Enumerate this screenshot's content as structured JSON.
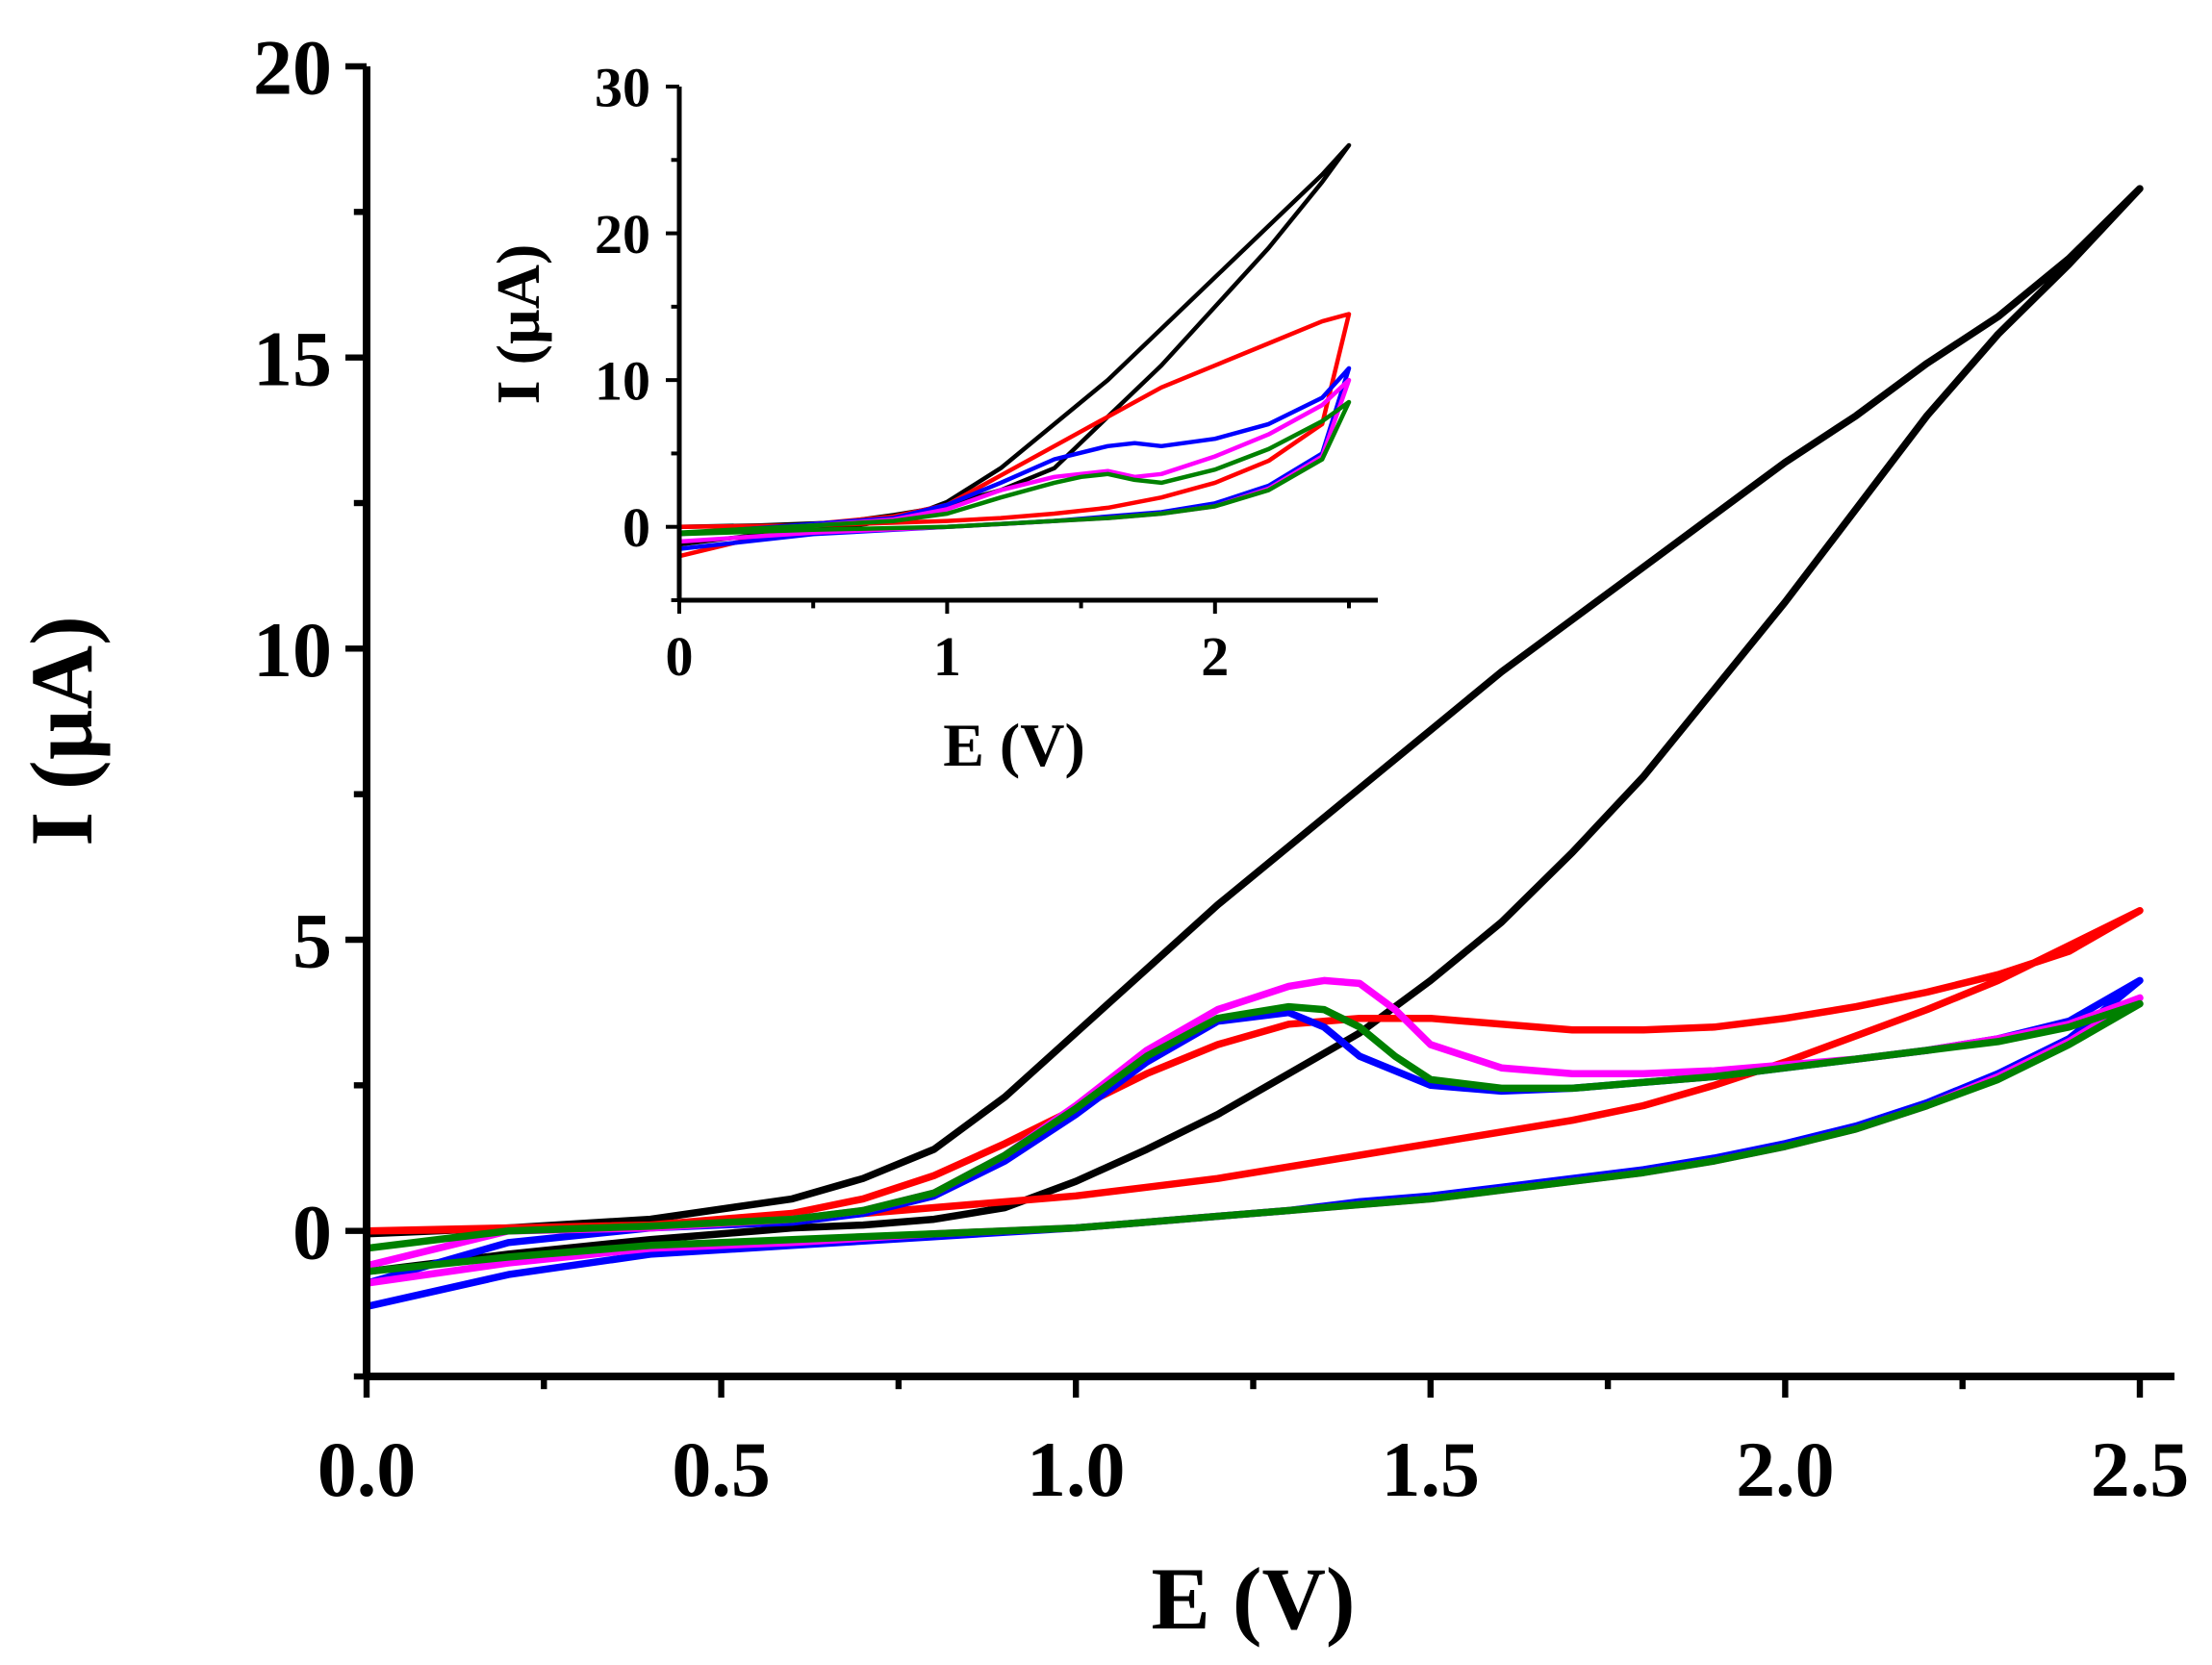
{
  "chart_data": [
    {
      "type": "line",
      "xlabel": "E (V)",
      "ylabel": "I (µA)",
      "xlim": [
        0,
        2.5
      ],
      "ylim": [
        -2.5,
        20
      ],
      "xticks": [
        "0.0",
        "0.5",
        "1.0",
        "1.5",
        "2.0",
        "2.5"
      ],
      "yticks": [
        "0",
        "5",
        "10",
        "15",
        "20"
      ],
      "grid": false,
      "series": [
        {
          "color": "#000000",
          "x": [
            0.0,
            0.2,
            0.4,
            0.5,
            0.55,
            0.6,
            0.7,
            0.8,
            0.9,
            1.0,
            1.1,
            1.2,
            1.3,
            1.4,
            1.5,
            1.6,
            1.7,
            1.8,
            1.9,
            2.0,
            2.1,
            2.2,
            2.3,
            2.4,
            2.5,
            2.4,
            2.3,
            2.2,
            2.1,
            2.0,
            1.9,
            1.8,
            1.7,
            1.6,
            1.5,
            1.4,
            1.3,
            1.2,
            1.1,
            1.0,
            0.9,
            0.8,
            0.7,
            0.6,
            0.4,
            0.2,
            0.0
          ],
          "y": [
            -0.7,
            -0.4,
            -0.15,
            -0.05,
            0.0,
            0.05,
            0.1,
            0.2,
            0.4,
            0.85,
            1.4,
            2.0,
            2.7,
            3.4,
            4.3,
            5.3,
            6.5,
            7.8,
            9.3,
            10.8,
            12.4,
            14.0,
            15.4,
            16.6,
            17.9,
            16.7,
            15.7,
            14.9,
            14.0,
            13.2,
            12.3,
            11.4,
            10.5,
            9.6,
            8.6,
            7.6,
            6.6,
            5.6,
            4.5,
            3.4,
            2.3,
            1.4,
            0.9,
            0.55,
            0.2,
            0.05,
            -0.05
          ]
        },
        {
          "color": "#ff0000",
          "x": [
            0.0,
            0.2,
            0.4,
            0.6,
            0.8,
            1.0,
            1.1,
            1.2,
            1.3,
            1.4,
            1.45,
            1.5,
            1.6,
            1.7,
            1.8,
            1.9,
            2.0,
            2.1,
            2.2,
            2.3,
            2.4,
            2.5,
            2.4,
            2.3,
            2.2,
            2.1,
            2.0,
            1.9,
            1.8,
            1.7,
            1.6,
            1.5,
            1.4,
            1.3,
            1.2,
            1.1,
            1.0,
            0.9,
            0.8,
            0.7,
            0.6,
            0.4,
            0.2,
            0.0
          ],
          "y": [
            0.0,
            0.05,
            0.1,
            0.2,
            0.4,
            0.6,
            0.75,
            0.9,
            1.1,
            1.3,
            1.4,
            1.5,
            1.7,
            1.9,
            2.15,
            2.5,
            2.9,
            3.35,
            3.8,
            4.3,
            4.9,
            5.5,
            4.8,
            4.4,
            4.1,
            3.85,
            3.65,
            3.5,
            3.45,
            3.45,
            3.55,
            3.65,
            3.65,
            3.55,
            3.2,
            2.7,
            2.1,
            1.5,
            0.95,
            0.55,
            0.3,
            0.1,
            0.03,
            0.0
          ]
        },
        {
          "color": "#0000ff",
          "x": [
            0.0,
            0.2,
            0.4,
            0.6,
            0.8,
            1.0,
            1.1,
            1.2,
            1.3,
            1.4,
            1.5,
            1.6,
            1.7,
            1.8,
            1.9,
            2.0,
            2.1,
            2.2,
            2.3,
            2.4,
            2.5,
            2.4,
            2.3,
            2.2,
            2.1,
            2.0,
            1.9,
            1.8,
            1.7,
            1.6,
            1.5,
            1.4,
            1.35,
            1.3,
            1.2,
            1.1,
            1.0,
            0.9,
            0.8,
            0.7,
            0.6,
            0.4,
            0.2,
            0.0
          ],
          "y": [
            -1.3,
            -0.75,
            -0.4,
            -0.25,
            -0.1,
            0.05,
            0.15,
            0.25,
            0.35,
            0.5,
            0.6,
            0.75,
            0.9,
            1.05,
            1.25,
            1.5,
            1.8,
            2.2,
            2.7,
            3.3,
            4.3,
            3.6,
            3.3,
            3.1,
            2.95,
            2.8,
            2.65,
            2.55,
            2.45,
            2.4,
            2.5,
            3.0,
            3.5,
            3.75,
            3.6,
            2.9,
            2.0,
            1.2,
            0.6,
            0.3,
            0.15,
            0.05,
            -0.2,
            -0.9
          ]
        },
        {
          "color": "#ff00ff",
          "x": [
            0.0,
            0.2,
            0.4,
            0.6,
            0.8,
            1.0,
            1.1,
            1.2,
            1.3,
            1.4,
            1.5,
            1.6,
            1.7,
            1.8,
            1.9,
            2.0,
            2.1,
            2.2,
            2.3,
            2.4,
            2.5,
            2.4,
            2.3,
            2.2,
            2.1,
            2.0,
            1.9,
            1.8,
            1.7,
            1.6,
            1.5,
            1.45,
            1.4,
            1.35,
            1.3,
            1.2,
            1.1,
            1.0,
            0.9,
            0.8,
            0.7,
            0.6,
            0.4,
            0.2,
            0.0
          ],
          "y": [
            -0.9,
            -0.55,
            -0.3,
            -0.2,
            -0.05,
            0.05,
            0.15,
            0.25,
            0.35,
            0.45,
            0.55,
            0.7,
            0.85,
            1.0,
            1.2,
            1.45,
            1.75,
            2.15,
            2.65,
            3.25,
            4.0,
            3.55,
            3.3,
            3.1,
            2.95,
            2.85,
            2.75,
            2.7,
            2.7,
            2.8,
            3.2,
            3.8,
            4.25,
            4.3,
            4.2,
            3.8,
            3.1,
            2.15,
            1.3,
            0.65,
            0.35,
            0.2,
            0.05,
            0.0,
            -0.6
          ]
        },
        {
          "color": "#008000",
          "x": [
            0.0,
            0.2,
            0.4,
            0.6,
            0.8,
            1.0,
            1.1,
            1.2,
            1.3,
            1.4,
            1.5,
            1.6,
            1.7,
            1.8,
            1.9,
            2.0,
            2.1,
            2.2,
            2.3,
            2.4,
            2.5,
            2.4,
            2.3,
            2.2,
            2.1,
            2.0,
            1.9,
            1.8,
            1.7,
            1.6,
            1.5,
            1.45,
            1.4,
            1.35,
            1.3,
            1.2,
            1.1,
            1.0,
            0.9,
            0.8,
            0.7,
            0.6,
            0.4,
            0.2,
            0.0
          ],
          "y": [
            -0.7,
            -0.45,
            -0.25,
            -0.15,
            -0.05,
            0.05,
            0.15,
            0.25,
            0.35,
            0.45,
            0.55,
            0.7,
            0.85,
            1.0,
            1.2,
            1.45,
            1.75,
            2.15,
            2.6,
            3.2,
            3.9,
            3.5,
            3.25,
            3.1,
            2.95,
            2.8,
            2.65,
            2.55,
            2.45,
            2.45,
            2.6,
            3.0,
            3.5,
            3.8,
            3.85,
            3.65,
            3.0,
            2.1,
            1.3,
            0.65,
            0.35,
            0.2,
            0.08,
            0.0,
            -0.3
          ]
        }
      ]
    },
    {
      "type": "line",
      "xlabel": "E (V)",
      "ylabel": "I (µA)",
      "xlim": [
        0,
        2.5
      ],
      "ylim": [
        -5,
        30
      ],
      "xticks": [
        "0",
        "1",
        "2"
      ],
      "yticks": [
        "0",
        "10",
        "20",
        "30"
      ],
      "grid": false,
      "series": [
        {
          "color": "#000000",
          "x": [
            0.0,
            0.4,
            0.7,
            0.8,
            0.9,
            1.0,
            1.2,
            1.4,
            1.6,
            1.8,
            2.0,
            2.2,
            2.4,
            2.5,
            2.4,
            2.2,
            2.0,
            1.8,
            1.6,
            1.4,
            1.2,
            1.0,
            0.9,
            0.8,
            0.6,
            0.3,
            0.0
          ],
          "y": [
            -1.2,
            -0.3,
            0.2,
            0.5,
            1.0,
            1.7,
            4.0,
            7.0,
            10.0,
            13.5,
            17.0,
            20.5,
            24.0,
            26.0,
            23.5,
            19.0,
            15.0,
            11.0,
            7.5,
            4.0,
            2.5,
            1.5,
            1.1,
            0.8,
            0.3,
            0.1,
            0.0
          ]
        },
        {
          "color": "#ff0000",
          "x": [
            0.0,
            0.5,
            1.0,
            1.2,
            1.4,
            1.6,
            1.8,
            2.0,
            2.2,
            2.4,
            2.5,
            2.4,
            2.2,
            2.0,
            1.8,
            1.6,
            1.4,
            1.2,
            1.0,
            0.8,
            0.5,
            0.0
          ],
          "y": [
            0.0,
            0.1,
            0.4,
            0.6,
            0.9,
            1.3,
            2.0,
            3.0,
            4.5,
            7.0,
            14.5,
            14.0,
            12.5,
            11.0,
            9.5,
            7.5,
            5.5,
            3.5,
            1.5,
            0.7,
            0.2,
            -2.0
          ]
        },
        {
          "color": "#0000ff",
          "x": [
            0.0,
            0.5,
            1.0,
            1.2,
            1.4,
            1.6,
            1.8,
            2.0,
            2.2,
            2.4,
            2.5,
            2.4,
            2.2,
            2.0,
            1.8,
            1.7,
            1.6,
            1.4,
            1.2,
            1.0,
            0.8,
            0.5,
            0.0
          ],
          "y": [
            -1.5,
            -0.5,
            0.0,
            0.2,
            0.4,
            0.7,
            1.0,
            1.6,
            2.8,
            5.0,
            10.8,
            8.8,
            7.0,
            6.0,
            5.5,
            5.7,
            5.5,
            4.6,
            3.0,
            1.5,
            0.6,
            0.2,
            -0.5
          ]
        },
        {
          "color": "#ff00ff",
          "x": [
            0.0,
            0.5,
            1.0,
            1.2,
            1.4,
            1.6,
            1.8,
            2.0,
            2.2,
            2.4,
            2.5,
            2.4,
            2.2,
            2.0,
            1.8,
            1.7,
            1.6,
            1.4,
            1.2,
            1.0,
            0.8,
            0.5,
            0.0
          ],
          "y": [
            -1.0,
            -0.4,
            0.0,
            0.2,
            0.4,
            0.6,
            0.9,
            1.4,
            2.6,
            4.8,
            10.0,
            8.3,
            6.3,
            4.8,
            3.6,
            3.4,
            3.8,
            3.4,
            2.5,
            1.2,
            0.5,
            0.1,
            -0.5
          ]
        },
        {
          "color": "#008000",
          "x": [
            0.0,
            0.5,
            1.0,
            1.2,
            1.4,
            1.6,
            1.8,
            2.0,
            2.2,
            2.4,
            2.5,
            2.4,
            2.2,
            2.0,
            1.8,
            1.7,
            1.6,
            1.5,
            1.4,
            1.2,
            1.0,
            0.8,
            0.5,
            0.0
          ],
          "y": [
            -0.5,
            -0.2,
            0.0,
            0.2,
            0.4,
            0.6,
            0.9,
            1.4,
            2.5,
            4.6,
            8.5,
            7.2,
            5.3,
            3.9,
            3.0,
            3.2,
            3.6,
            3.4,
            3.0,
            2.0,
            0.9,
            0.4,
            0.1,
            -0.4
          ]
        }
      ]
    }
  ]
}
